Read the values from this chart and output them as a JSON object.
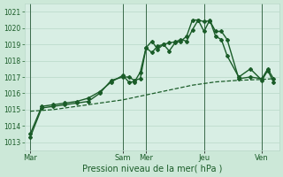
{
  "bg_color": "#cce8d8",
  "plot_bg_color": "#d8eee4",
  "grid_color": "#b8d8c8",
  "line_color": "#1a5c28",
  "ylabel_ticks": [
    1013,
    1014,
    1015,
    1016,
    1017,
    1018,
    1019,
    1020,
    1021
  ],
  "ylim": [
    1012.5,
    1021.5
  ],
  "xlabel": "Pression niveau de la mer( hPa )",
  "day_labels": [
    "Mar",
    "Sam",
    "Mer",
    "Jeu",
    "Ven"
  ],
  "day_positions": [
    0,
    16,
    20,
    30,
    40
  ],
  "xlim": [
    -1,
    43
  ],
  "line1_x": [
    0,
    2,
    4,
    6,
    8,
    10,
    12,
    14,
    16,
    17,
    18,
    19,
    20,
    21,
    22,
    23,
    24,
    25,
    26,
    27,
    28,
    29,
    30,
    31,
    32,
    33,
    34,
    36,
    38,
    40,
    41,
    42
  ],
  "line1_y": [
    1013.3,
    1015.1,
    1015.2,
    1015.3,
    1015.4,
    1015.5,
    1016.0,
    1016.8,
    1017.0,
    1017.0,
    1016.8,
    1016.9,
    1018.8,
    1019.2,
    1018.7,
    1019.0,
    1019.1,
    1019.15,
    1019.3,
    1019.2,
    1019.9,
    1020.5,
    1020.4,
    1020.45,
    1019.8,
    1019.8,
    1019.3,
    1016.9,
    1017.0,
    1016.9,
    1017.5,
    1016.9
  ],
  "line1_lw": 1.0,
  "line2_x": [
    0,
    2,
    4,
    6,
    8,
    10,
    12,
    14,
    16,
    17,
    18,
    19,
    20,
    21,
    22,
    23,
    24,
    25,
    26,
    27,
    28,
    29,
    30,
    31,
    32,
    33,
    34,
    36,
    38,
    40,
    41,
    42
  ],
  "line2_y": [
    1013.5,
    1015.2,
    1015.3,
    1015.4,
    1015.5,
    1015.7,
    1016.1,
    1016.7,
    1017.1,
    1016.7,
    1016.7,
    1017.3,
    1018.8,
    1018.5,
    1018.9,
    1019.0,
    1018.6,
    1019.1,
    1019.2,
    1019.5,
    1020.5,
    1020.5,
    1019.8,
    1020.5,
    1019.5,
    1019.3,
    1018.3,
    1017.0,
    1017.5,
    1016.8,
    1017.4,
    1016.7
  ],
  "line2_lw": 1.0,
  "line3_x": [
    0,
    4,
    8,
    12,
    16,
    20,
    24,
    28,
    32,
    36,
    40,
    42
  ],
  "line3_y": [
    1014.9,
    1015.0,
    1015.2,
    1015.4,
    1015.6,
    1015.9,
    1016.2,
    1016.5,
    1016.7,
    1016.8,
    1016.85,
    1016.9
  ],
  "line3_lw": 0.9,
  "markersize": 2.0
}
